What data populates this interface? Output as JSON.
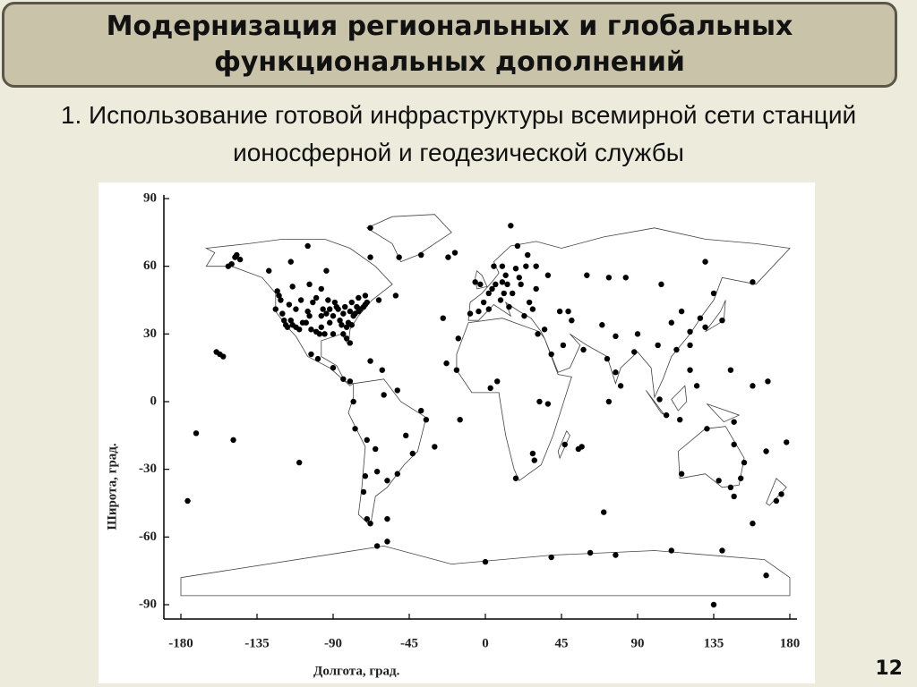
{
  "slide": {
    "title": "Модернизация региональных и глобальных функциональных дополнений",
    "subtitle": "1. Использование готовой инфраструктуры всемирной сети станций ионосферной и геодезической службы",
    "page_number": "12"
  },
  "chart_data": {
    "type": "scatter",
    "xlabel": "Долгота, град.",
    "ylabel": "Широта, град.",
    "color": "#000000",
    "xlim": [
      -180,
      180
    ],
    "ylim": [
      -90,
      90
    ],
    "xticks": [
      -180,
      -135,
      -90,
      -45,
      0,
      45,
      90,
      135,
      180
    ],
    "yticks": [
      90,
      60,
      30,
      0,
      -30,
      -60,
      -90
    ],
    "x": [
      -150,
      -148,
      -152,
      -147,
      -145,
      -157,
      -155,
      -159,
      -171,
      -149,
      -110,
      -176,
      -123,
      -114,
      -104,
      -97,
      -79,
      -75,
      -71,
      -63,
      -53,
      -94,
      -115,
      -105,
      -68,
      -128,
      -122,
      -121,
      -120,
      -118,
      -117,
      -115,
      -112,
      -112,
      -110,
      -108,
      -106,
      -105,
      -104,
      -100,
      -98,
      -97,
      -97,
      -96,
      -95,
      -94,
      -93,
      -92,
      -90,
      -90,
      -88,
      -87,
      -86,
      -85,
      -84,
      -84,
      -83,
      -82,
      -81,
      -80,
      -80,
      -78,
      -77,
      -76,
      -75,
      -74,
      -72,
      -71,
      -70,
      -119,
      -116,
      -109,
      -102,
      -100,
      -89,
      -82,
      -79,
      -124,
      -114,
      -103,
      -92,
      -99,
      -103,
      -90,
      -84,
      -80,
      -68,
      -61,
      -78,
      -77,
      -70,
      -47,
      -43,
      -38,
      -52,
      -58,
      -71,
      -72,
      -70,
      -68,
      -64,
      -60,
      -65,
      -35,
      -30,
      -58,
      -51,
      -68,
      -22,
      -18,
      -38,
      -25,
      -16,
      -15,
      -23,
      -52,
      -9,
      -4,
      2,
      2,
      -1,
      6,
      4,
      10,
      13,
      11,
      16,
      21,
      24,
      25,
      18,
      10,
      5,
      12,
      19,
      15,
      30,
      37,
      30,
      26,
      23,
      14,
      9,
      -3,
      -6,
      20,
      28,
      35,
      44,
      49,
      60,
      73,
      83,
      104,
      130,
      158,
      135,
      113,
      121,
      116,
      127,
      140,
      130,
      121,
      121,
      103,
      107,
      115,
      125,
      147,
      131,
      116,
      138,
      145,
      151,
      153,
      147,
      147,
      175,
      172,
      178,
      166,
      167,
      145,
      158,
      77,
      72,
      88,
      80,
      73,
      55,
      57,
      47,
      37,
      32,
      29,
      18,
      28,
      3,
      -17,
      7,
      31,
      39,
      46,
      58,
      51,
      69,
      77,
      90,
      102,
      110,
      70,
      0,
      39,
      77,
      110,
      166,
      140,
      62,
      135,
      -64,
      -58,
      158
    ],
    "values": [
      61,
      64,
      60,
      65,
      63,
      21,
      20,
      22,
      -14,
      -17,
      -27,
      -44,
      49,
      51,
      52,
      50,
      44,
      46,
      47,
      45,
      47,
      58,
      62,
      69,
      64,
      58,
      47,
      45,
      39,
      34,
      33,
      36,
      33,
      41,
      32,
      35,
      35,
      40,
      38,
      31,
      30,
      33,
      38,
      41,
      30,
      39,
      45,
      35,
      30,
      38,
      42,
      41,
      36,
      34,
      39,
      30,
      42,
      28,
      35,
      26,
      40,
      38,
      39,
      42,
      40,
      41,
      42,
      43,
      44,
      36,
      43,
      45,
      44,
      46,
      44,
      33,
      34,
      41,
      34,
      32,
      41,
      19,
      21,
      15,
      10,
      9,
      18,
      14,
      0,
      -12,
      -17,
      -15,
      -23,
      -4,
      -32,
      -35,
      -33,
      -40,
      -52,
      -54,
      -31,
      3,
      -21,
      -8,
      -20,
      -52,
      64,
      77,
      64,
      66,
      65,
      37,
      28,
      -8,
      17,
      5,
      39,
      40,
      41,
      48,
      44,
      52,
      50,
      53,
      52,
      48,
      48,
      52,
      60,
      65,
      59,
      60,
      60,
      56,
      69,
      78,
      60,
      56,
      50,
      44,
      38,
      42,
      45,
      52,
      53,
      55,
      41,
      32,
      40,
      40,
      56,
      55,
      55,
      52,
      62,
      53,
      48,
      23,
      31,
      40,
      37,
      36,
      33,
      25,
      14,
      1,
      -6,
      -8,
      7,
      -9,
      -12,
      -32,
      -35,
      -38,
      -34,
      -27,
      -19,
      -42,
      -41,
      -44,
      -18,
      -22,
      9,
      14,
      7,
      13,
      19,
      22,
      7,
      0,
      -21,
      -20,
      -19,
      -1,
      0,
      -26,
      -34,
      -23,
      6,
      14,
      9,
      30,
      21,
      25,
      23,
      36,
      34,
      29,
      30,
      25,
      35,
      -49,
      -71,
      -69,
      -68,
      -66,
      -77,
      -66,
      -67,
      -90,
      -64,
      -62,
      -54
    ]
  }
}
